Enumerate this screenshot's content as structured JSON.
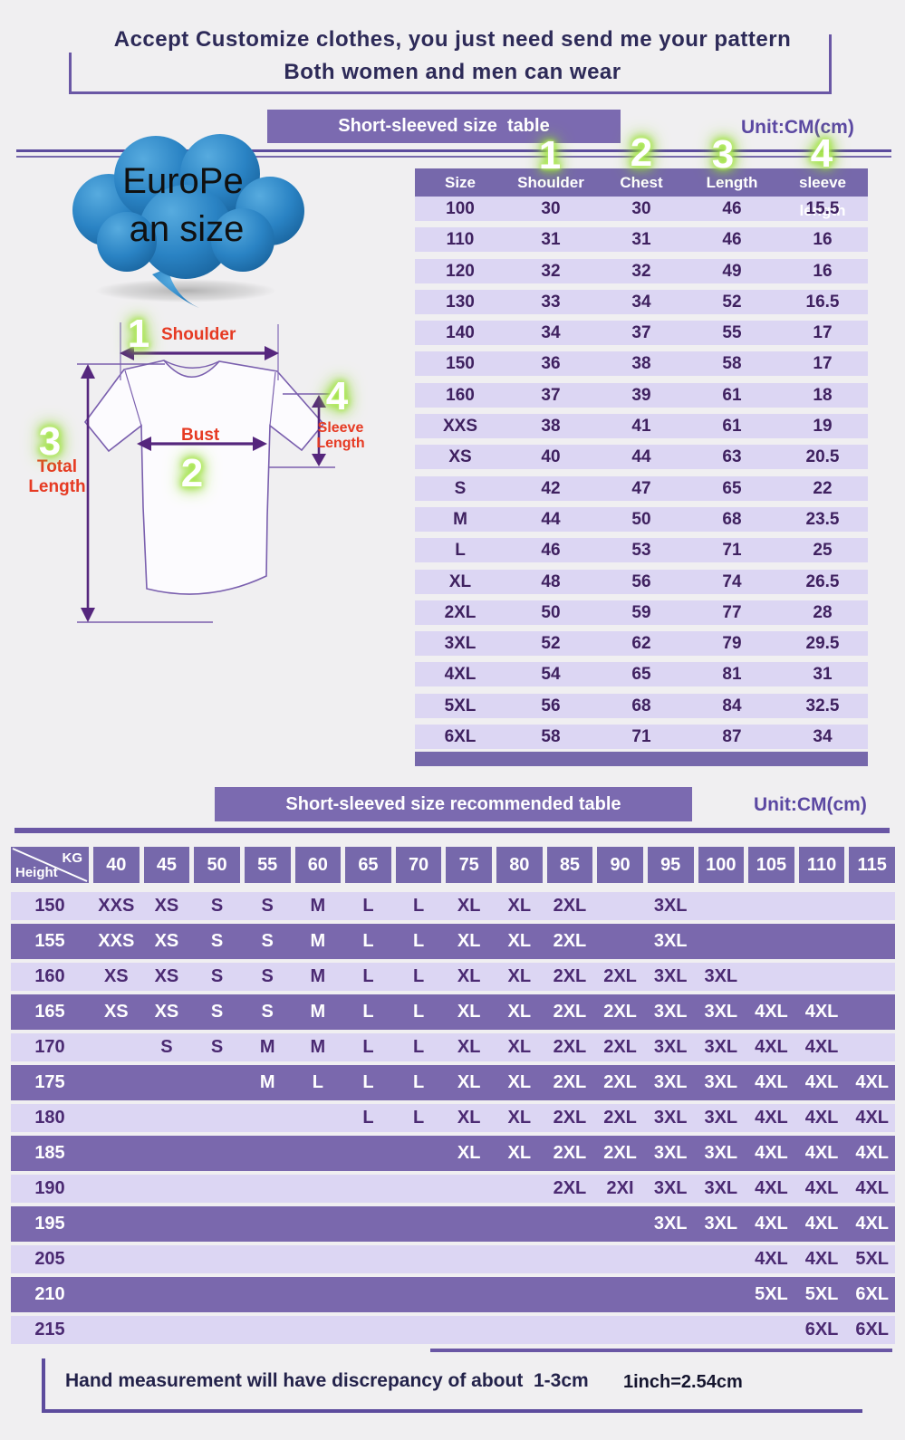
{
  "header": {
    "line1": "Accept Customize clothes, you just need send me your pattern",
    "line2": "Both women and men can wear"
  },
  "bubble": {
    "line1": "EuroPe",
    "line2": "an  size"
  },
  "diagram": {
    "num1": "1",
    "num2": "2",
    "num3": "3",
    "num4": "4",
    "shoulder_label": "Shoulder",
    "bust_label": "Bust",
    "total_length_label_1": "Total",
    "total_length_label_2": "Length",
    "sleeve_length_label_1": "Sleeve",
    "sleeve_length_label_2": "Length"
  },
  "size_table": {
    "banner": "Short-sleeved size  table",
    "unit": "Unit:CM(cm)",
    "marker_numbers": [
      "1",
      "2",
      "3",
      "4"
    ],
    "columns": [
      "Size",
      "Shoulder",
      "Chest",
      "Length",
      "sleeve length"
    ],
    "rows": [
      [
        "100",
        "30",
        "30",
        "46",
        "15.5"
      ],
      [
        "110",
        "31",
        "31",
        "46",
        "16"
      ],
      [
        "120",
        "32",
        "32",
        "49",
        "16"
      ],
      [
        "130",
        "33",
        "34",
        "52",
        "16.5"
      ],
      [
        "140",
        "34",
        "37",
        "55",
        "17"
      ],
      [
        "150",
        "36",
        "38",
        "58",
        "17"
      ],
      [
        "160",
        "37",
        "39",
        "61",
        "18"
      ],
      [
        "XXS",
        "38",
        "41",
        "61",
        "19"
      ],
      [
        "XS",
        "40",
        "44",
        "63",
        "20.5"
      ],
      [
        "S",
        "42",
        "47",
        "65",
        "22"
      ],
      [
        "M",
        "44",
        "50",
        "68",
        "23.5"
      ],
      [
        "L",
        "46",
        "53",
        "71",
        "25"
      ],
      [
        "XL",
        "48",
        "56",
        "74",
        "26.5"
      ],
      [
        "2XL",
        "50",
        "59",
        "77",
        "28"
      ],
      [
        "3XL",
        "52",
        "62",
        "79",
        "29.5"
      ],
      [
        "4XL",
        "54",
        "65",
        "81",
        "31"
      ],
      [
        "5XL",
        "56",
        "68",
        "84",
        "32.5"
      ],
      [
        "6XL",
        "58",
        "71",
        "87",
        "34"
      ]
    ]
  },
  "recommend_table": {
    "banner": "Short-sleeved size recommended table",
    "unit": "Unit:CM(cm)",
    "corner_top": "KG",
    "corner_bottom": "Height",
    "weight_columns": [
      "40",
      "45",
      "50",
      "55",
      "60",
      "65",
      "70",
      "75",
      "80",
      "85",
      "90",
      "95",
      "100",
      "105",
      "110",
      "115"
    ],
    "rows": [
      {
        "height": "150",
        "cells": [
          "XXS",
          "XS",
          "S",
          "S",
          "M",
          "L",
          "L",
          "XL",
          "XL",
          "2XL",
          "",
          "3XL",
          "",
          "",
          "",
          ""
        ]
      },
      {
        "height": "155",
        "cells": [
          "XXS",
          "XS",
          "S",
          "S",
          "M",
          "L",
          "L",
          "XL",
          "XL",
          "2XL",
          "",
          "3XL",
          "",
          "",
          "",
          ""
        ]
      },
      {
        "height": "160",
        "cells": [
          "XS",
          "XS",
          "S",
          "S",
          "M",
          "L",
          "L",
          "XL",
          "XL",
          "2XL",
          "2XL",
          "3XL",
          "3XL",
          "",
          "",
          ""
        ]
      },
      {
        "height": "165",
        "cells": [
          "XS",
          "XS",
          "S",
          "S",
          "M",
          "L",
          "L",
          "XL",
          "XL",
          "2XL",
          "2XL",
          "3XL",
          "3XL",
          "4XL",
          "4XL",
          ""
        ]
      },
      {
        "height": "170",
        "cells": [
          "",
          "S",
          "S",
          "M",
          "M",
          "L",
          "L",
          "XL",
          "XL",
          "2XL",
          "2XL",
          "3XL",
          "3XL",
          "4XL",
          "4XL",
          ""
        ]
      },
      {
        "height": "175",
        "cells": [
          "",
          "",
          "",
          "M",
          "L",
          "L",
          "L",
          "XL",
          "XL",
          "2XL",
          "2XL",
          "3XL",
          "3XL",
          "4XL",
          "4XL",
          "4XL"
        ]
      },
      {
        "height": "180",
        "cells": [
          "",
          "",
          "",
          "",
          "",
          "L",
          "L",
          "XL",
          "XL",
          "2XL",
          "2XL",
          "3XL",
          "3XL",
          "4XL",
          "4XL",
          "4XL"
        ]
      },
      {
        "height": "185",
        "cells": [
          "",
          "",
          "",
          "",
          "",
          "",
          "",
          "XL",
          "XL",
          "2XL",
          "2XL",
          "3XL",
          "3XL",
          "4XL",
          "4XL",
          "4XL"
        ]
      },
      {
        "height": "190",
        "cells": [
          "",
          "",
          "",
          "",
          "",
          "",
          "",
          "",
          "",
          "2XL",
          "2XI",
          "3XL",
          "3XL",
          "4XL",
          "4XL",
          "4XL"
        ]
      },
      {
        "height": "195",
        "cells": [
          "",
          "",
          "",
          "",
          "",
          "",
          "",
          "",
          "",
          "",
          "",
          "3XL",
          "3XL",
          "4XL",
          "4XL",
          "4XL"
        ]
      },
      {
        "height": "205",
        "cells": [
          "",
          "",
          "",
          "",
          "",
          "",
          "",
          "",
          "",
          "",
          "",
          "",
          "",
          "4XL",
          "4XL",
          "5XL"
        ]
      },
      {
        "height": "210",
        "cells": [
          "",
          "",
          "",
          "",
          "",
          "",
          "",
          "",
          "",
          "",
          "",
          "",
          "",
          "5XL",
          "5XL",
          "6XL"
        ]
      },
      {
        "height": "215",
        "cells": [
          "",
          "",
          "",
          "",
          "",
          "",
          "",
          "",
          "",
          "",
          "",
          "",
          "",
          "",
          "6XL",
          "6XL"
        ]
      }
    ]
  },
  "footer": {
    "note": "Hand measurement will have discrepancy of about  1-3cm",
    "conversion": "1inch=2.54cm"
  },
  "colors": {
    "banner_purple": "#7b6ab0",
    "header_purple": "#7668ab",
    "lavender_row": "#dcd6f3",
    "dark_value_text": "#3f2160",
    "title_text": "#2d2a58",
    "unit_text": "#5b48a2",
    "red_label": "#e63a23",
    "glow_green": "#93dc2f",
    "arrow_purple": "#55267d",
    "cloud_blue": "#2a83c4",
    "rule_purple": "#5c4b9d"
  }
}
